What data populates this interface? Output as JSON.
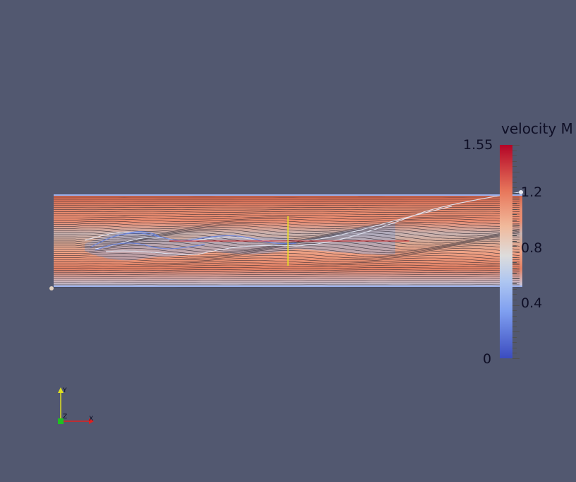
{
  "colorbar": {
    "title": "velocity M",
    "max_label": "1.55",
    "min_label": "0",
    "labels": [
      "1.2",
      "0.8",
      "0.4"
    ],
    "colormap": [
      "#3b4cc0",
      "#dddcdc",
      "#b40426"
    ]
  },
  "axes": {
    "x_label": "X",
    "y_label": "Y",
    "z_label": "Z",
    "x_color": "#e02020",
    "y_color": "#e0e020",
    "z_color": "#20e020"
  },
  "colors": {
    "background": "#525870",
    "fluid_bg": "#e9846a"
  }
}
